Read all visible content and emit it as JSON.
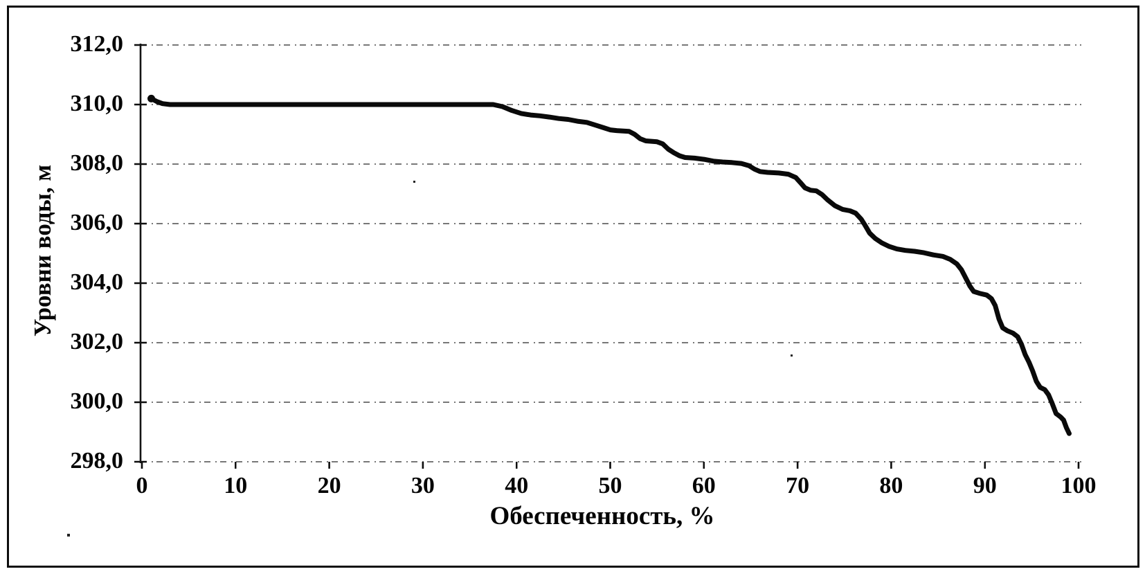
{
  "chart_data": {
    "type": "line",
    "title": "",
    "xlabel": "Обеспеченность, %",
    "ylabel": "Уровни воды, м",
    "xlim": [
      0,
      100
    ],
    "ylim": [
      298,
      312
    ],
    "grid": "horizontal dashed gridlines at every 2 m",
    "legend": "none",
    "x_tick_labels": [
      "0",
      "10",
      "20",
      "30",
      "40",
      "50",
      "60",
      "70",
      "80",
      "90",
      "100"
    ],
    "x_tick_values": [
      0,
      10,
      20,
      30,
      40,
      50,
      60,
      70,
      80,
      90,
      100
    ],
    "y_tick_labels": [
      "312,0",
      "310,0",
      "308,0",
      "306,0",
      "304,0",
      "302,0",
      "300,0",
      "298,0"
    ],
    "y_tick_values": [
      312,
      310,
      308,
      306,
      304,
      302,
      300,
      298
    ],
    "line_color": "#0a0a0a",
    "series": [
      {
        "name": "water-level-duration-curve",
        "points": [
          [
            1,
            310.2
          ],
          [
            1.6,
            310.1
          ],
          [
            2.2,
            310.03
          ],
          [
            3,
            310.0
          ],
          [
            6,
            310.0
          ],
          [
            10,
            310.0
          ],
          [
            14,
            310.0
          ],
          [
            18,
            310.0
          ],
          [
            22,
            310.0
          ],
          [
            26,
            310.0
          ],
          [
            30,
            310.0
          ],
          [
            34,
            310.0
          ],
          [
            37.5,
            310.0
          ],
          [
            38.5,
            309.93
          ],
          [
            39.5,
            309.8
          ],
          [
            40.5,
            309.7
          ],
          [
            41.5,
            309.65
          ],
          [
            42.5,
            309.62
          ],
          [
            43.5,
            309.58
          ],
          [
            44.5,
            309.53
          ],
          [
            45.5,
            309.5
          ],
          [
            46.5,
            309.44
          ],
          [
            47.5,
            309.4
          ],
          [
            48.5,
            309.3
          ],
          [
            49.3,
            309.22
          ],
          [
            50,
            309.15
          ],
          [
            50.8,
            309.12
          ],
          [
            52,
            309.1
          ],
          [
            52.6,
            309.0
          ],
          [
            53.2,
            308.85
          ],
          [
            53.8,
            308.78
          ],
          [
            55,
            308.75
          ],
          [
            55.6,
            308.68
          ],
          [
            56.2,
            308.5
          ],
          [
            56.8,
            308.38
          ],
          [
            57.4,
            308.28
          ],
          [
            58,
            308.22
          ],
          [
            59,
            308.2
          ],
          [
            60,
            308.16
          ],
          [
            61,
            308.1
          ],
          [
            62,
            308.07
          ],
          [
            63,
            308.05
          ],
          [
            64,
            308.02
          ],
          [
            64.8,
            307.95
          ],
          [
            65.4,
            307.83
          ],
          [
            66,
            307.75
          ],
          [
            66.8,
            307.72
          ],
          [
            68,
            307.7
          ],
          [
            69,
            307.66
          ],
          [
            69.8,
            307.55
          ],
          [
            70.3,
            307.38
          ],
          [
            70.8,
            307.2
          ],
          [
            71.4,
            307.12
          ],
          [
            72,
            307.1
          ],
          [
            72.6,
            306.98
          ],
          [
            73.2,
            306.8
          ],
          [
            74,
            306.6
          ],
          [
            74.8,
            306.48
          ],
          [
            75.6,
            306.43
          ],
          [
            76.2,
            306.35
          ],
          [
            76.8,
            306.15
          ],
          [
            77.2,
            305.95
          ],
          [
            77.7,
            305.68
          ],
          [
            78.3,
            305.5
          ],
          [
            79,
            305.35
          ],
          [
            79.8,
            305.23
          ],
          [
            80.6,
            305.15
          ],
          [
            81.5,
            305.1
          ],
          [
            82.5,
            305.07
          ],
          [
            83.5,
            305.02
          ],
          [
            84.5,
            304.95
          ],
          [
            85.5,
            304.9
          ],
          [
            86.3,
            304.8
          ],
          [
            87,
            304.65
          ],
          [
            87.5,
            304.45
          ],
          [
            88,
            304.15
          ],
          [
            88.4,
            303.9
          ],
          [
            88.8,
            303.72
          ],
          [
            89.4,
            303.66
          ],
          [
            90.2,
            303.6
          ],
          [
            90.7,
            303.48
          ],
          [
            91.1,
            303.25
          ],
          [
            91.5,
            302.8
          ],
          [
            91.9,
            302.5
          ],
          [
            92.4,
            302.4
          ],
          [
            93,
            302.32
          ],
          [
            93.5,
            302.2
          ],
          [
            93.9,
            301.95
          ],
          [
            94.3,
            301.6
          ],
          [
            94.7,
            301.35
          ],
          [
            95.1,
            301.05
          ],
          [
            95.5,
            300.7
          ],
          [
            95.9,
            300.5
          ],
          [
            96.4,
            300.42
          ],
          [
            96.8,
            300.25
          ],
          [
            97.2,
            299.95
          ],
          [
            97.6,
            299.62
          ],
          [
            98.1,
            299.5
          ],
          [
            98.4,
            299.4
          ],
          [
            98.7,
            299.15
          ],
          [
            99,
            298.95
          ]
        ]
      }
    ]
  }
}
